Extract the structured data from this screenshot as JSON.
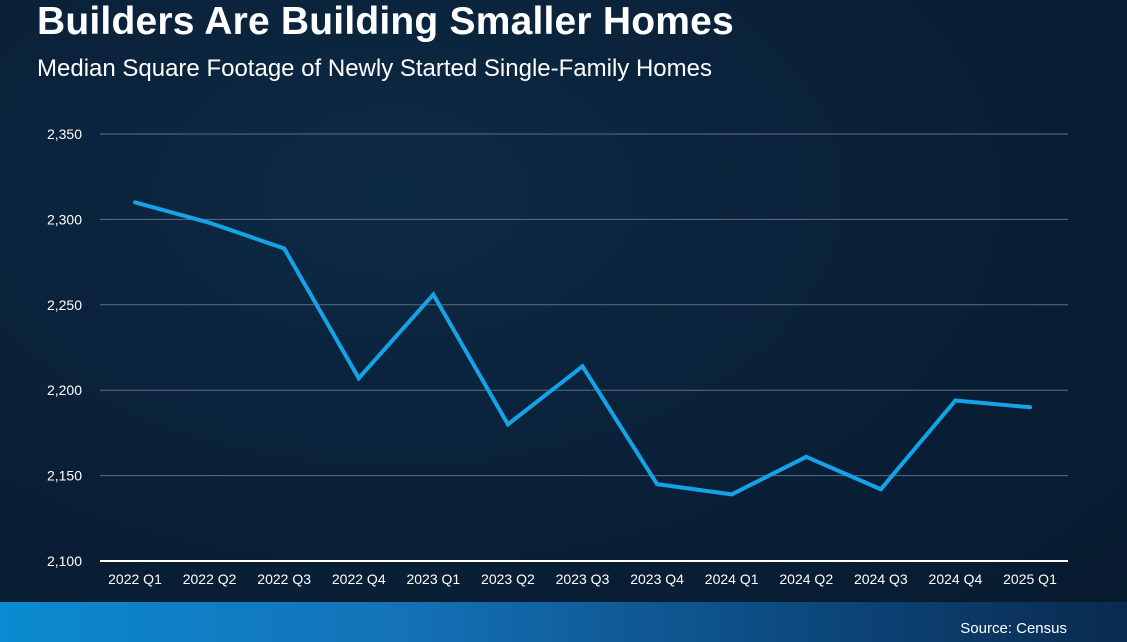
{
  "title": "Builders Are Building Smaller Homes",
  "subtitle": "Median Square Footage of Newly Started Single-Family Homes",
  "source": "Source: Census",
  "colors": {
    "line": "#14a3e6",
    "gridline": "#5b6f82",
    "axis": "#ffffff"
  },
  "chart_data": {
    "type": "line",
    "title": "Builders Are Building Smaller Homes",
    "subtitle": "Median Square Footage of Newly Started Single-Family Homes",
    "xlabel": "",
    "ylabel": "",
    "grid": true,
    "legend": "none",
    "ylim": [
      2100,
      2350
    ],
    "yticks": [
      2100,
      2150,
      2200,
      2250,
      2300,
      2350
    ],
    "ytick_labels": [
      "2,100",
      "2,150",
      "2,200",
      "2,250",
      "2,300",
      "2,350"
    ],
    "categories": [
      "2022 Q1",
      "2022 Q2",
      "2022 Q3",
      "2022 Q4",
      "2023 Q1",
      "2023 Q2",
      "2023 Q3",
      "2023 Q4",
      "2024 Q1",
      "2024 Q2",
      "2024 Q3",
      "2024 Q4",
      "2025 Q1"
    ],
    "series": [
      {
        "values": [
          2310,
          2298,
          2283,
          2207,
          2256,
          2180,
          2214,
          2145,
          2139,
          2161,
          2142,
          2194,
          2190
        ]
      }
    ]
  }
}
